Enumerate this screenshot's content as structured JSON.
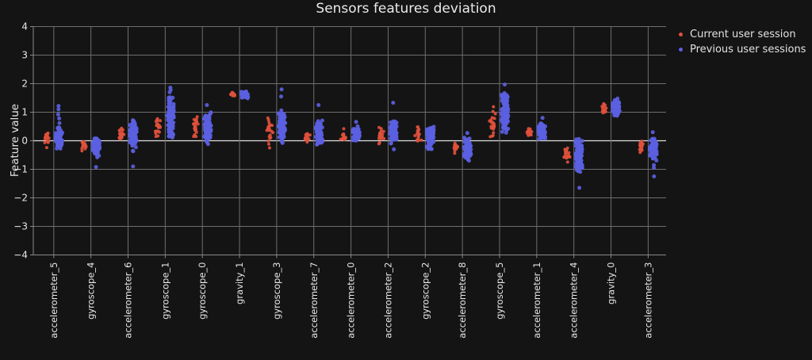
{
  "title": "Sensors features deviation",
  "legend": {
    "items": [
      {
        "label": "Current user session",
        "color": "#e0503c"
      },
      {
        "label": "Previous user sessions",
        "color": "#5b5fe1"
      }
    ]
  },
  "colors": {
    "background": "#141414",
    "grid": "#6e6e6e",
    "zero_line": "#dedede",
    "spine": "#8a8a8a",
    "text": "#e6e6e6",
    "current": "#e0503c",
    "previous": "#5b5fe1"
  },
  "chart_data": {
    "type": "scatter",
    "subtype": "strip-plot",
    "title": "Sensors features deviation",
    "xlabel": "",
    "ylabel": "Feature value",
    "ylim": [
      -4,
      4
    ],
    "grid": true,
    "legend_position": "top-right",
    "yticks": [
      {
        "v": 4,
        "label": "4"
      },
      {
        "v": 3,
        "label": "3"
      },
      {
        "v": 2,
        "label": "2"
      },
      {
        "v": 1,
        "label": "1"
      },
      {
        "v": 0,
        "label": "0"
      },
      {
        "v": -1,
        "label": "−1"
      },
      {
        "v": -2,
        "label": "−2"
      },
      {
        "v": -3,
        "label": "−3"
      },
      {
        "v": -4,
        "label": "−4"
      }
    ],
    "categories": [
      "accelerometer_5",
      "gyroscope_4",
      "accelerometer_6",
      "gyroscope_1",
      "gyroscope_0",
      "gravity_1",
      "gyroscope_3",
      "accelerometer_7",
      "accelerometer_0",
      "accelerometer_2",
      "gyroscope_2",
      "accelerometer_8",
      "gyroscope_5",
      "accelerometer_1",
      "accelerometer_4",
      "gravity_0",
      "accelerometer_3"
    ],
    "series": [
      {
        "name": "Current user session",
        "color": "#e0503c",
        "clusters": [
          {
            "mean": 0.08,
            "sd": 0.12,
            "min": -0.15,
            "max": 0.32,
            "n": 20,
            "outliers": [
              -0.24
            ]
          },
          {
            "mean": -0.16,
            "sd": 0.1,
            "min": -0.36,
            "max": 0.05,
            "n": 18,
            "outliers": []
          },
          {
            "mean": 0.22,
            "sd": 0.12,
            "min": -0.04,
            "max": 0.46,
            "n": 20,
            "outliers": []
          },
          {
            "mean": 0.55,
            "sd": 0.22,
            "min": 0.06,
            "max": 0.95,
            "n": 22,
            "outliers": []
          },
          {
            "mean": 0.55,
            "sd": 0.26,
            "min": 0.1,
            "max": 1.02,
            "n": 22,
            "outliers": []
          },
          {
            "mean": 1.63,
            "sd": 0.03,
            "min": 1.56,
            "max": 1.7,
            "n": 12,
            "outliers": []
          },
          {
            "mean": 0.4,
            "sd": 0.22,
            "min": -0.16,
            "max": 0.84,
            "n": 22,
            "outliers": [
              -0.25
            ]
          },
          {
            "mean": 0.1,
            "sd": 0.12,
            "min": -0.17,
            "max": 0.34,
            "n": 18,
            "outliers": []
          },
          {
            "mean": 0.12,
            "sd": 0.07,
            "min": 0.0,
            "max": 0.26,
            "n": 16,
            "outliers": [
              0.42
            ]
          },
          {
            "mean": 0.2,
            "sd": 0.14,
            "min": -0.14,
            "max": 0.52,
            "n": 20,
            "outliers": []
          },
          {
            "mean": 0.2,
            "sd": 0.14,
            "min": -0.14,
            "max": 0.52,
            "n": 20,
            "outliers": []
          },
          {
            "mean": -0.2,
            "sd": 0.12,
            "min": -0.48,
            "max": 0.05,
            "n": 20,
            "outliers": []
          },
          {
            "mean": 0.7,
            "sd": 0.3,
            "min": 0.14,
            "max": 1.22,
            "n": 24,
            "outliers": []
          },
          {
            "mean": 0.3,
            "sd": 0.09,
            "min": 0.12,
            "max": 0.46,
            "n": 18,
            "outliers": []
          },
          {
            "mean": -0.45,
            "sd": 0.18,
            "min": -0.83,
            "max": -0.15,
            "n": 20,
            "outliers": []
          },
          {
            "mean": 1.12,
            "sd": 0.12,
            "min": 0.9,
            "max": 1.38,
            "n": 18,
            "outliers": []
          },
          {
            "mean": -0.18,
            "sd": 0.11,
            "min": -0.42,
            "max": 0.05,
            "n": 18,
            "outliers": []
          }
        ]
      },
      {
        "name": "Previous user sessions",
        "color": "#5b5fe1",
        "clusters": [
          {
            "mean": 0.08,
            "sd": 0.16,
            "min": -0.3,
            "max": 0.5,
            "n": 110,
            "outliers": [
              1.22,
              1.1,
              0.92,
              0.78,
              0.62
            ]
          },
          {
            "mean": -0.22,
            "sd": 0.15,
            "min": -0.6,
            "max": 0.1,
            "n": 100,
            "outliers": [
              -0.92
            ]
          },
          {
            "mean": 0.2,
            "sd": 0.22,
            "min": -0.55,
            "max": 0.8,
            "n": 110,
            "outliers": [
              -0.9
            ]
          },
          {
            "mean": 0.75,
            "sd": 0.33,
            "min": 0.05,
            "max": 1.55,
            "n": 120,
            "outliers": [
              1.86,
              1.78,
              1.7
            ]
          },
          {
            "mean": 0.5,
            "sd": 0.28,
            "min": -0.17,
            "max": 1.1,
            "n": 120,
            "outliers": [
              1.25
            ]
          },
          {
            "mean": 1.61,
            "sd": 0.06,
            "min": 1.48,
            "max": 1.74,
            "n": 60,
            "outliers": []
          },
          {
            "mean": 0.5,
            "sd": 0.27,
            "min": -0.35,
            "max": 1.25,
            "n": 120,
            "outliers": [
              1.8,
              1.55
            ]
          },
          {
            "mean": 0.25,
            "sd": 0.22,
            "min": -0.45,
            "max": 0.8,
            "n": 110,
            "outliers": [
              1.25
            ]
          },
          {
            "mean": 0.22,
            "sd": 0.12,
            "min": 0.0,
            "max": 0.55,
            "n": 90,
            "outliers": [
              0.66
            ]
          },
          {
            "mean": 0.33,
            "sd": 0.17,
            "min": -0.14,
            "max": 0.74,
            "n": 110,
            "outliers": [
              1.33,
              -0.3
            ]
          },
          {
            "mean": 0.15,
            "sd": 0.18,
            "min": -0.42,
            "max": 0.52,
            "n": 110,
            "outliers": []
          },
          {
            "mean": -0.3,
            "sd": 0.18,
            "min": -0.72,
            "max": 0.12,
            "n": 110,
            "outliers": [
              0.27
            ]
          },
          {
            "mean": 1.0,
            "sd": 0.38,
            "min": 0.08,
            "max": 1.78,
            "n": 130,
            "outliers": [
              1.97
            ]
          },
          {
            "mean": 0.35,
            "sd": 0.14,
            "min": 0.06,
            "max": 0.66,
            "n": 100,
            "outliers": [
              0.8
            ]
          },
          {
            "mean": -0.5,
            "sd": 0.28,
            "min": -1.18,
            "max": 0.1,
            "n": 120,
            "outliers": [
              -1.65
            ]
          },
          {
            "mean": 1.15,
            "sd": 0.14,
            "min": 0.85,
            "max": 1.48,
            "n": 100,
            "outliers": []
          },
          {
            "mean": -0.28,
            "sd": 0.17,
            "min": -0.7,
            "max": 0.08,
            "n": 100,
            "outliers": [
              0.3,
              -0.85,
              -0.95,
              -1.25
            ]
          }
        ]
      }
    ]
  }
}
